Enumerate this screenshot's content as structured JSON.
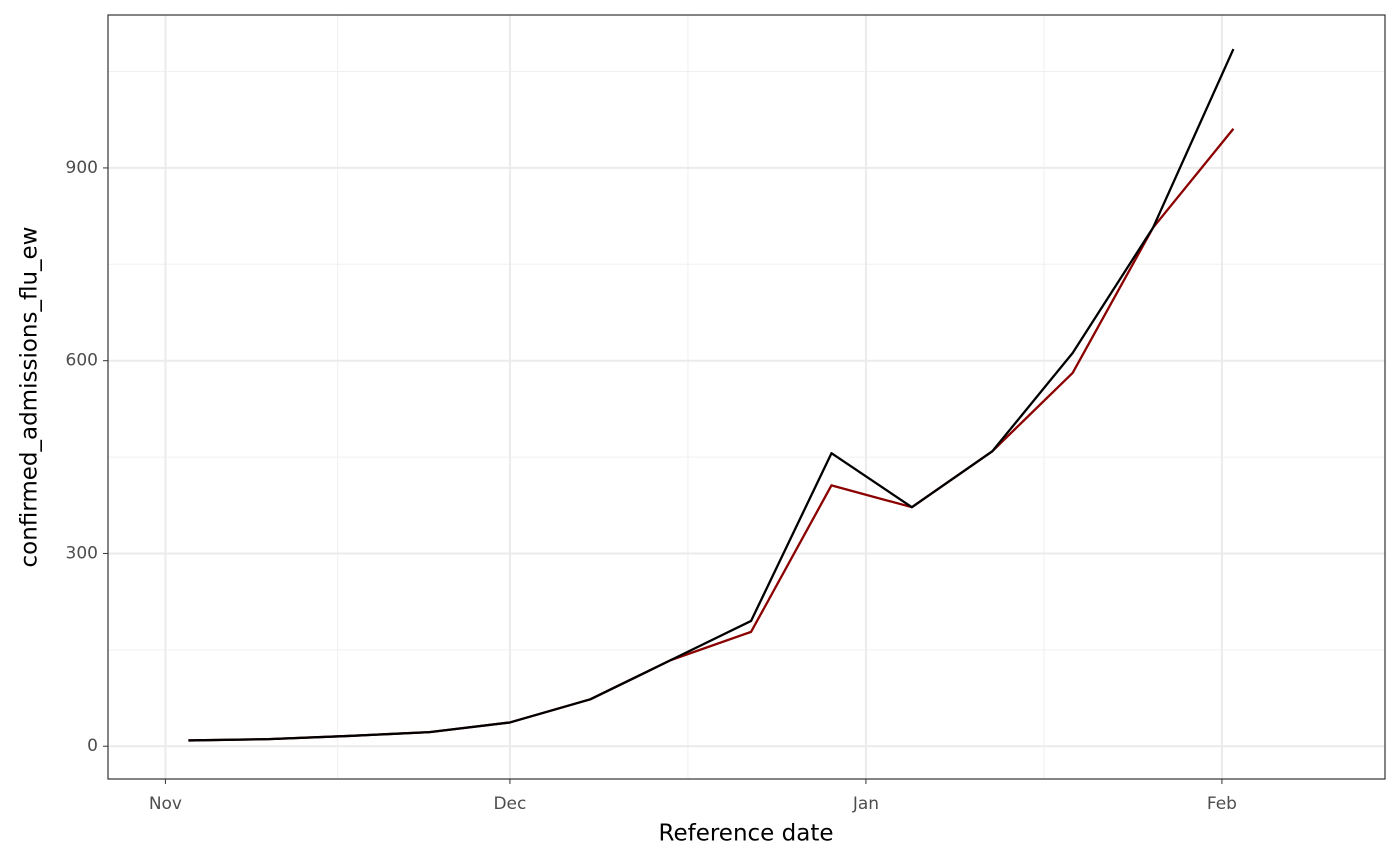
{
  "chart_data": {
    "type": "line",
    "x_label": "Reference date",
    "y_label": "confirmed_admissions_flu_ew",
    "x": [
      2,
      9,
      16,
      23,
      30,
      37,
      44,
      51,
      58,
      65,
      72,
      79,
      86,
      93
    ],
    "series": [
      {
        "color": "#8b0000",
        "values": [
          9,
          11,
          16,
          22,
          37,
          73,
          134,
          178,
          406,
          372,
          459,
          581,
          807,
          961
        ]
      },
      {
        "color": "#000000",
        "values": [
          9,
          11,
          16,
          22,
          37,
          73,
          134,
          195,
          456,
          372,
          459,
          612,
          807,
          1085
        ]
      }
    ],
    "xlim": [
      -5,
      106.2
    ],
    "xticks": [
      {
        "value": 0,
        "label": "Nov"
      },
      {
        "value": 30,
        "label": "Dec"
      },
      {
        "value": 61,
        "label": "Jan"
      },
      {
        "value": 92,
        "label": "Feb"
      }
    ],
    "ylim": [
      -51,
      1138
    ],
    "yticks": [
      0,
      300,
      600,
      900
    ],
    "grid": true
  }
}
